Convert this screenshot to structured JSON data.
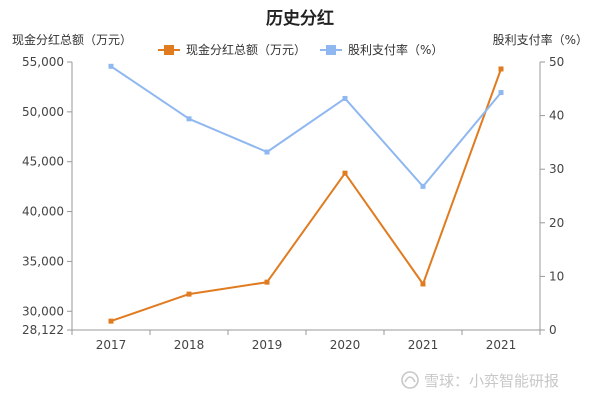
{
  "chart_data": {
    "type": "line",
    "title": "历史分红",
    "categories": [
      "2017",
      "2018",
      "2019",
      "2020",
      "2021",
      "2021"
    ],
    "series": [
      {
        "name": "现金分红总额（万元）",
        "axis": "left",
        "color": "#E07B20",
        "values": [
          29010,
          31720,
          32920,
          43850,
          32740,
          54300
        ]
      },
      {
        "name": "股利支付率（%）",
        "axis": "right",
        "color": "#8FB8F0",
        "values": [
          49.2,
          39.4,
          33.2,
          43.2,
          26.8,
          44.3
        ]
      }
    ],
    "left_axis": {
      "label": "现金分红总额（万元）",
      "ylim": [
        28122,
        55000
      ],
      "ticks": [
        "55,000",
        "50,000",
        "45,000",
        "40,000",
        "35,000",
        "30,000",
        "28,122"
      ],
      "tick_values": [
        55000,
        50000,
        45000,
        40000,
        35000,
        30000,
        28122
      ]
    },
    "right_axis": {
      "label": "股利支付率（%）",
      "ylim": [
        0,
        50
      ],
      "ticks": [
        "50",
        "40",
        "30",
        "20",
        "10",
        "0"
      ],
      "tick_values": [
        50,
        40,
        30,
        20,
        10,
        0
      ]
    },
    "legend_position": "top-center",
    "grid": false
  },
  "watermark": {
    "text": "雪球：小弈智能研报"
  }
}
